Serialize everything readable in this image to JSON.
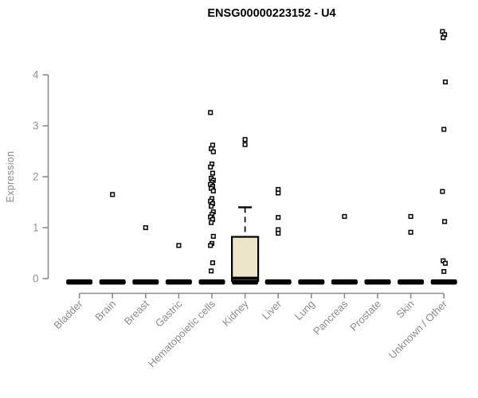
{
  "header": {
    "title": "ENSG00000223152 - U4"
  },
  "colors": {
    "background": "#ffffff",
    "title_text": "#000000",
    "axis_line": "#8c8c8c",
    "tick_number_text": "#8d939e",
    "category_label_text": "#8a8a8a",
    "axis_title_text": "#8a8a8a",
    "point_stroke": "#000000",
    "point_fill": "#ffffff",
    "zero_bar": "#000000",
    "box_fill": "#ece5c9",
    "box_border": "#000000"
  },
  "chart_data": {
    "type": "boxplot",
    "subtype": "box-and-strip expression plot, open-square markers, thick black bar at 0 for every category",
    "title": "ENSG00000223152 - U4",
    "xlabel": "",
    "ylabel": "Expression",
    "ylim": [
      0,
      4.9
    ],
    "yticks": [
      0,
      1,
      2,
      3,
      4
    ],
    "grid": false,
    "legend": false,
    "x_tick_label_angle": 45,
    "categories": [
      "Bladder",
      "Brain",
      "Breast",
      "Gastric",
      "Hematopoietic cells",
      "Kidney",
      "Liver",
      "Lung",
      "Pancreas",
      "Prostate",
      "Skin",
      "Unknown / Other"
    ],
    "zero_bar": [
      true,
      true,
      true,
      true,
      true,
      true,
      true,
      true,
      true,
      true,
      true,
      true
    ],
    "points_by_category": [
      [],
      [
        1.65
      ],
      [
        1.0
      ],
      [
        0.65
      ],
      [
        3.26,
        2.62,
        2.55,
        2.49,
        2.25,
        2.19,
        2.07,
        1.97,
        1.93,
        1.89,
        1.85,
        1.81,
        1.77,
        1.72,
        1.57,
        1.52,
        1.47,
        1.42,
        1.31,
        1.26,
        1.21,
        1.16,
        1.1,
        0.83,
        0.69,
        0.65,
        0.31,
        0.15
      ],
      [],
      [
        1.75,
        1.68,
        1.2,
        0.96,
        0.89
      ],
      [],
      [
        1.22
      ],
      [],
      [
        1.22,
        0.91
      ],
      [
        4.85,
        4.79,
        4.73,
        3.86,
        2.93,
        1.71,
        1.12,
        0.35,
        0.3,
        0.14
      ]
    ],
    "box": {
      "category": "Kidney",
      "q1": 0,
      "median": 0.03,
      "q3": 0.82,
      "whisker_low": 0,
      "whisker_high": 1.4,
      "whisker_style": "dashed",
      "outliers": [
        2.73,
        2.63
      ]
    }
  }
}
